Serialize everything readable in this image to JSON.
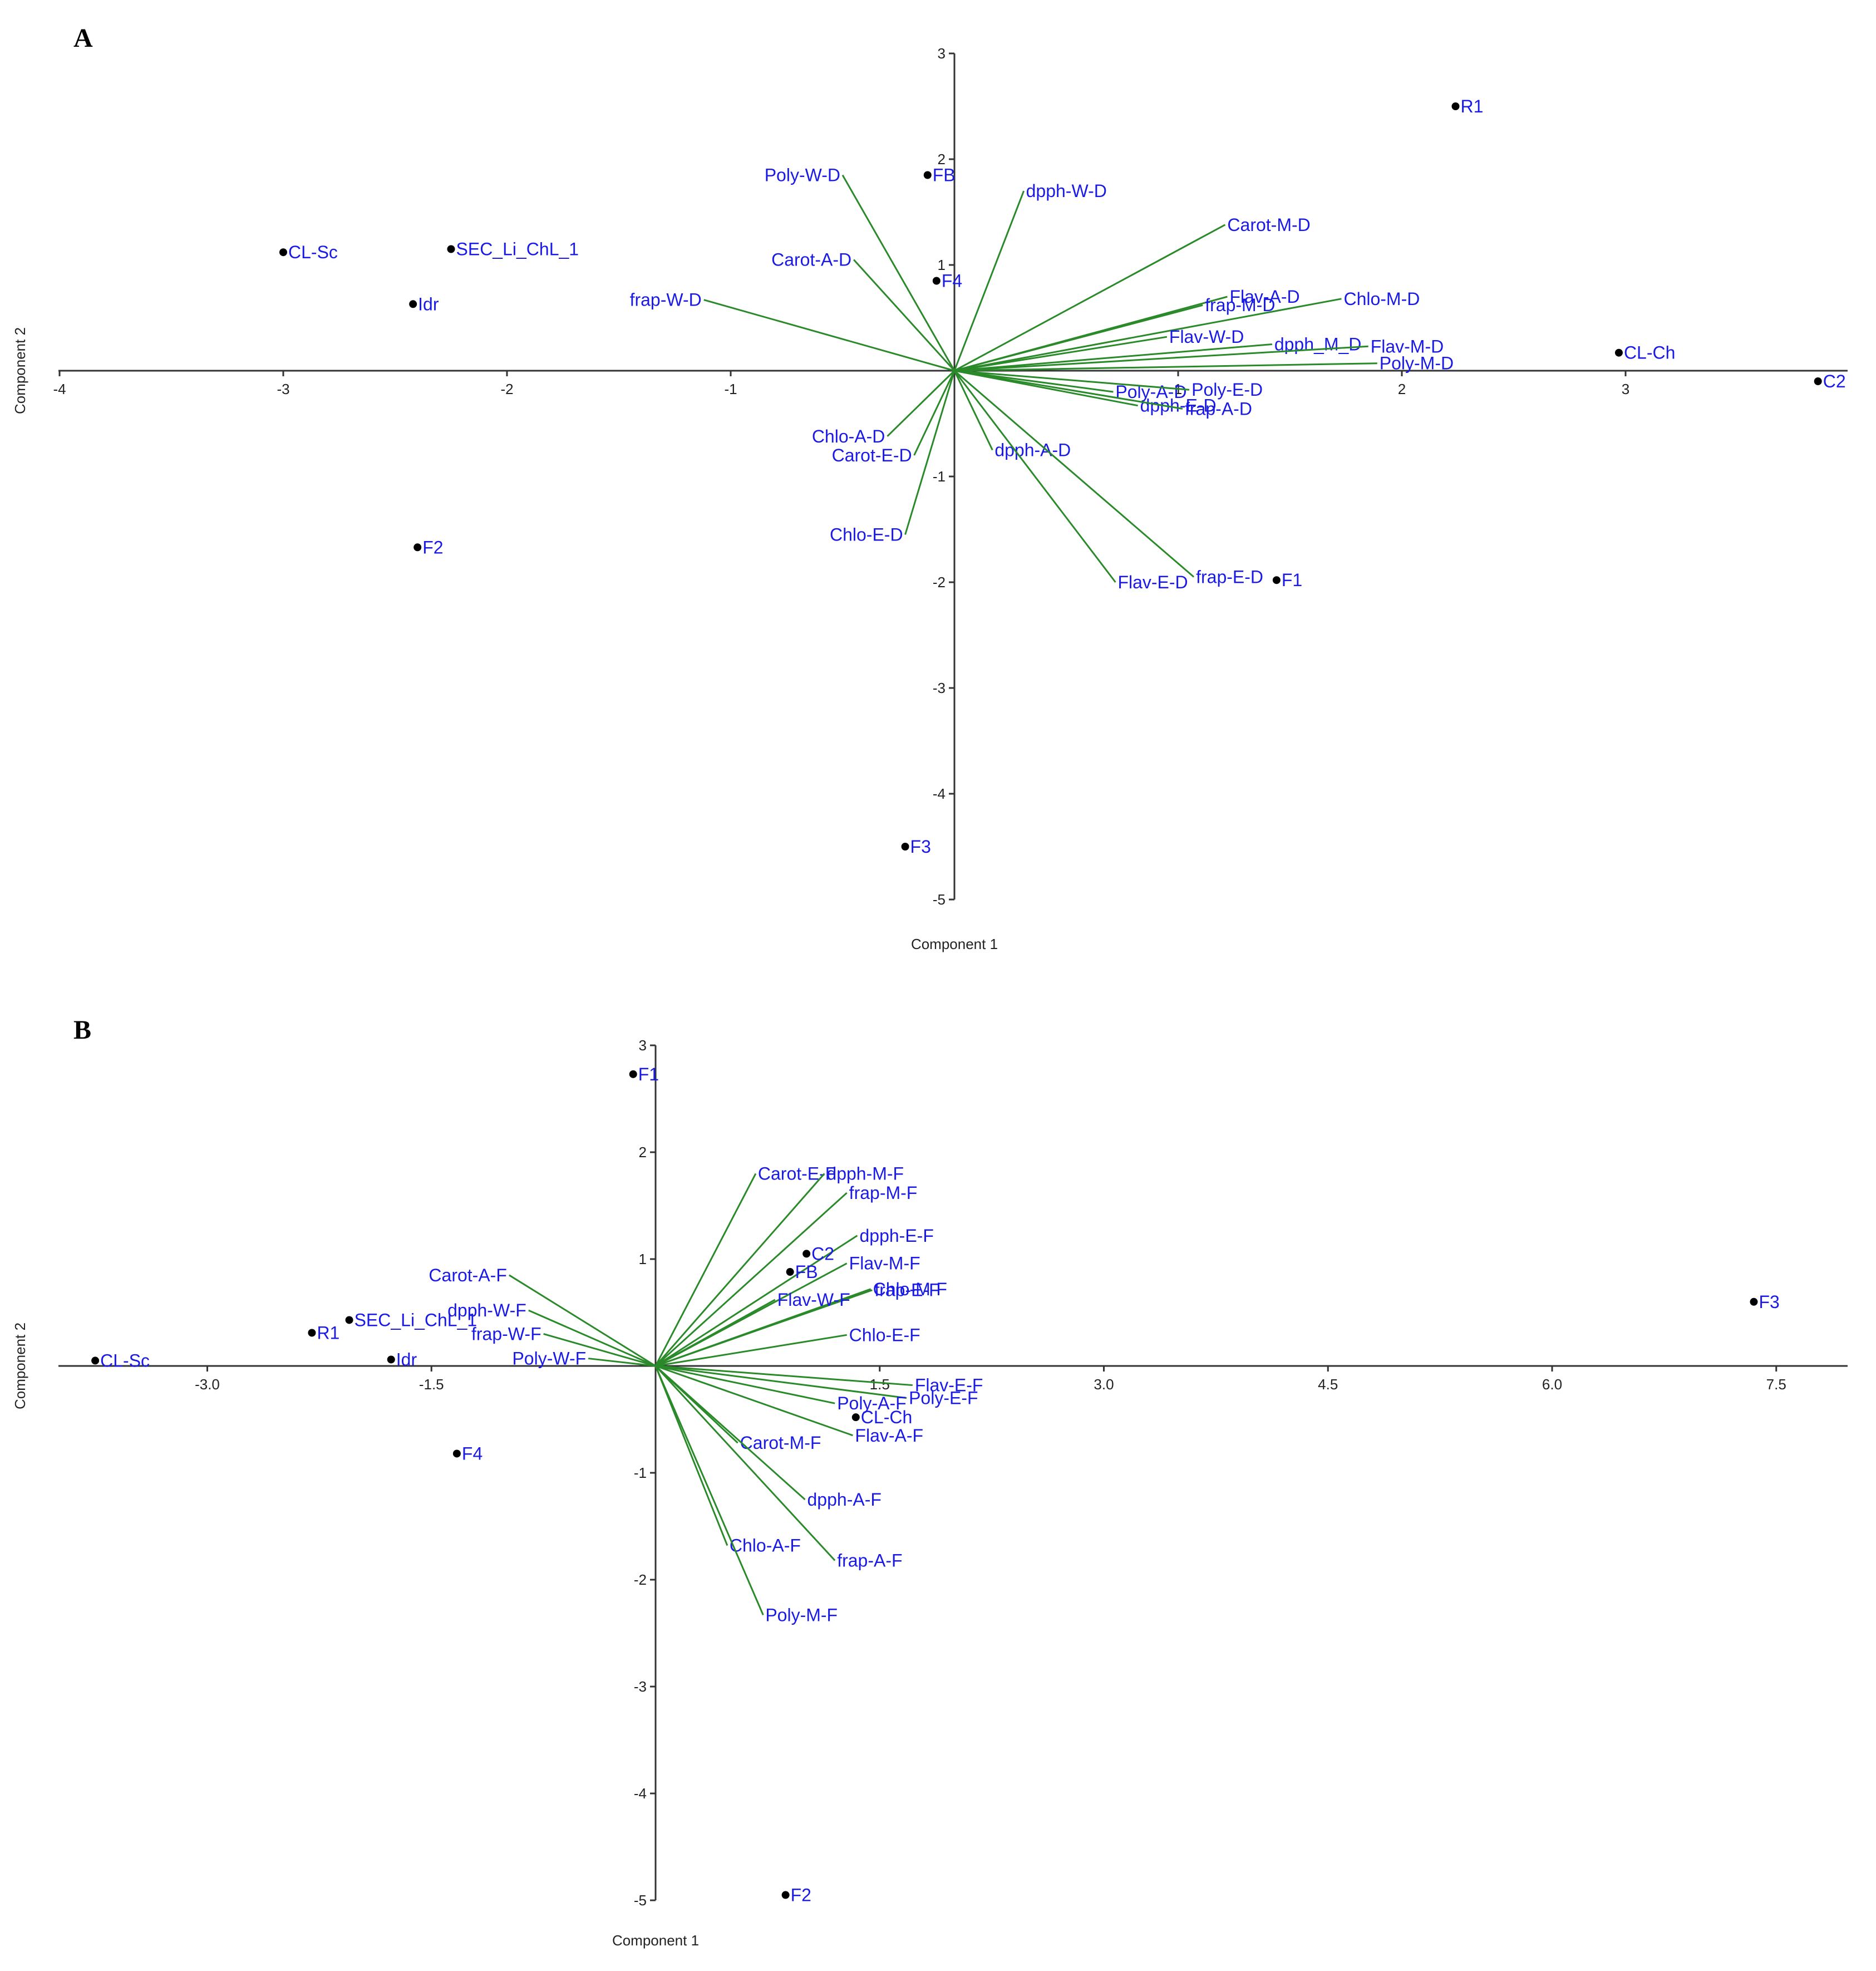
{
  "colors": {
    "vector": "#2a8a2a",
    "label": "#1a1ae6",
    "point": "#000000",
    "axis": "#333333"
  },
  "chart_data": [
    {
      "type": "scatter",
      "panel": "A",
      "xlabel": "Component 1",
      "ylabel": "Component 2",
      "xlim": [
        -4,
        4
      ],
      "ylim": [
        -5,
        3
      ],
      "xticks": [
        -4,
        -3,
        -2,
        -1,
        1,
        2,
        3
      ],
      "xtick_labels": [
        "-4",
        "-3",
        "-2",
        "-1",
        "1",
        "2",
        "3"
      ],
      "yticks": [
        3,
        2,
        1,
        -1,
        -2,
        -3,
        -4,
        -5
      ],
      "ytick_labels": [
        "3",
        "2",
        "1",
        "-1",
        "-2",
        "-3",
        "-4",
        "-5"
      ],
      "points": [
        {
          "label": "R1",
          "x": 2.24,
          "y": 2.5
        },
        {
          "label": "FB",
          "x": -0.12,
          "y": 1.85
        },
        {
          "label": "CL-Sc",
          "x": -3.0,
          "y": 1.12
        },
        {
          "label": "SEC_Li_ChL_1",
          "x": -2.25,
          "y": 1.15
        },
        {
          "label": "Idr",
          "x": -2.42,
          "y": 0.63
        },
        {
          "label": "F4",
          "x": -0.08,
          "y": 0.85
        },
        {
          "label": "CL-Ch",
          "x": 2.97,
          "y": 0.17
        },
        {
          "label": "C2",
          "x": 3.86,
          "y": -0.1
        },
        {
          "label": "F2",
          "x": -2.4,
          "y": -1.67
        },
        {
          "label": "F1",
          "x": 1.44,
          "y": -1.98
        },
        {
          "label": "F3",
          "x": -0.22,
          "y": -4.5
        }
      ],
      "loadings": [
        {
          "label": "Poly-W-D",
          "x": -0.5,
          "y": 1.85
        },
        {
          "label": "dpph-W-D",
          "x": 0.31,
          "y": 1.7
        },
        {
          "label": "Carot-M-D",
          "x": 1.21,
          "y": 1.38
        },
        {
          "label": "Carot-A-D",
          "x": -0.45,
          "y": 1.05
        },
        {
          "label": "frap-W-D",
          "x": -1.12,
          "y": 0.67
        },
        {
          "label": "Flav-A-D",
          "x": 1.22,
          "y": 0.7
        },
        {
          "label": "frap-M-D",
          "x": 1.11,
          "y": 0.62
        },
        {
          "label": "Chlo-M-D",
          "x": 1.73,
          "y": 0.68
        },
        {
          "label": "Flav-W-D",
          "x": 0.95,
          "y": 0.32
        },
        {
          "label": "dpph_M_D",
          "x": 1.42,
          "y": 0.25
        },
        {
          "label": "Flav-M-D",
          "x": 1.85,
          "y": 0.23
        },
        {
          "label": "Poly-M-D",
          "x": 1.89,
          "y": 0.07
        },
        {
          "label": "Poly-A-D",
          "x": 0.71,
          "y": -0.2
        },
        {
          "label": "Poly-E-D",
          "x": 1.05,
          "y": -0.18
        },
        {
          "label": "dpph-E-D",
          "x": 0.82,
          "y": -0.33
        },
        {
          "label": "frap-A-D",
          "x": 1.02,
          "y": -0.36
        },
        {
          "label": "Chlo-A-D",
          "x": -0.3,
          "y": -0.62
        },
        {
          "label": "Carot-E-D",
          "x": -0.18,
          "y": -0.8
        },
        {
          "label": "dpph-A-D",
          "x": 0.17,
          "y": -0.75
        },
        {
          "label": "Chlo-E-D",
          "x": -0.22,
          "y": -1.55
        },
        {
          "label": "Flav-E-D",
          "x": 0.72,
          "y": -2.0
        },
        {
          "label": "frap-E-D",
          "x": 1.07,
          "y": -1.95
        }
      ]
    },
    {
      "type": "scatter",
      "panel": "B",
      "xlabel": "Component 1",
      "ylabel": "Component 2",
      "xlim": [
        -4.0,
        8.0
      ],
      "ylim": [
        -5,
        3
      ],
      "xticks": [
        -3.0,
        -1.5,
        1.5,
        3.0,
        4.5,
        6.0,
        7.5
      ],
      "xtick_labels": [
        "-3.0",
        "-1.5",
        "1.5",
        "3.0",
        "4.5",
        "6.0",
        "7.5"
      ],
      "yticks": [
        3,
        2,
        1,
        -1,
        -2,
        -3,
        -4,
        -5
      ],
      "ytick_labels": [
        "3",
        "2",
        "1",
        "-1",
        "-2",
        "-3",
        "-4",
        "-5"
      ],
      "points": [
        {
          "label": "F1",
          "x": -0.15,
          "y": 2.73
        },
        {
          "label": "C2",
          "x": 1.01,
          "y": 1.05
        },
        {
          "label": "FB",
          "x": 0.9,
          "y": 0.88
        },
        {
          "label": "F3",
          "x": 7.35,
          "y": 0.6
        },
        {
          "label": "CL-Sc",
          "x": -3.75,
          "y": 0.05
        },
        {
          "label": "SEC_Li_ChL_1",
          "x": -2.05,
          "y": 0.43
        },
        {
          "label": "R1",
          "x": -2.3,
          "y": 0.31
        },
        {
          "label": "Idr",
          "x": -1.77,
          "y": 0.06
        },
        {
          "label": "CL-Ch",
          "x": 1.34,
          "y": -0.48
        },
        {
          "label": "F4",
          "x": -1.33,
          "y": -0.82
        },
        {
          "label": "F2",
          "x": 0.87,
          "y": -4.95
        }
      ],
      "loadings": [
        {
          "label": "Carot-E-F",
          "x": 0.67,
          "y": 1.8
        },
        {
          "label": "dpph-M-F",
          "x": 1.13,
          "y": 1.8
        },
        {
          "label": "frap-M-F",
          "x": 1.28,
          "y": 1.62
        },
        {
          "label": "dpph-E-F",
          "x": 1.35,
          "y": 1.22
        },
        {
          "label": "Flav-M-F",
          "x": 1.28,
          "y": 0.96
        },
        {
          "label": "Chlo-M-F",
          "x": 1.44,
          "y": 0.72
        },
        {
          "label": "frap-E-F",
          "x": 1.45,
          "y": 0.71
        },
        {
          "label": "Flav-W-F",
          "x": 0.8,
          "y": 0.62
        },
        {
          "label": "Chlo-E-F",
          "x": 1.28,
          "y": 0.29
        },
        {
          "label": "Carot-A-F",
          "x": -0.98,
          "y": 0.85
        },
        {
          "label": "dpph-W-F",
          "x": -0.85,
          "y": 0.52
        },
        {
          "label": "frap-W-F",
          "x": -0.75,
          "y": 0.3
        },
        {
          "label": "Poly-W-F",
          "x": -0.45,
          "y": 0.07
        },
        {
          "label": "Flav-E-F",
          "x": 1.72,
          "y": -0.18
        },
        {
          "label": "Poly-E-F",
          "x": 1.68,
          "y": -0.3
        },
        {
          "label": "Poly-A-F",
          "x": 1.2,
          "y": -0.35
        },
        {
          "label": "Flav-A-F",
          "x": 1.32,
          "y": -0.65
        },
        {
          "label": "Carot-M-F",
          "x": 0.55,
          "y": -0.72
        },
        {
          "label": "dpph-A-F",
          "x": 1.0,
          "y": -1.25
        },
        {
          "label": "frap-A-F",
          "x": 1.2,
          "y": -1.82
        },
        {
          "label": "Chlo-A-F",
          "x": 0.48,
          "y": -1.68
        },
        {
          "label": "Poly-M-F",
          "x": 0.72,
          "y": -2.33
        }
      ]
    }
  ]
}
